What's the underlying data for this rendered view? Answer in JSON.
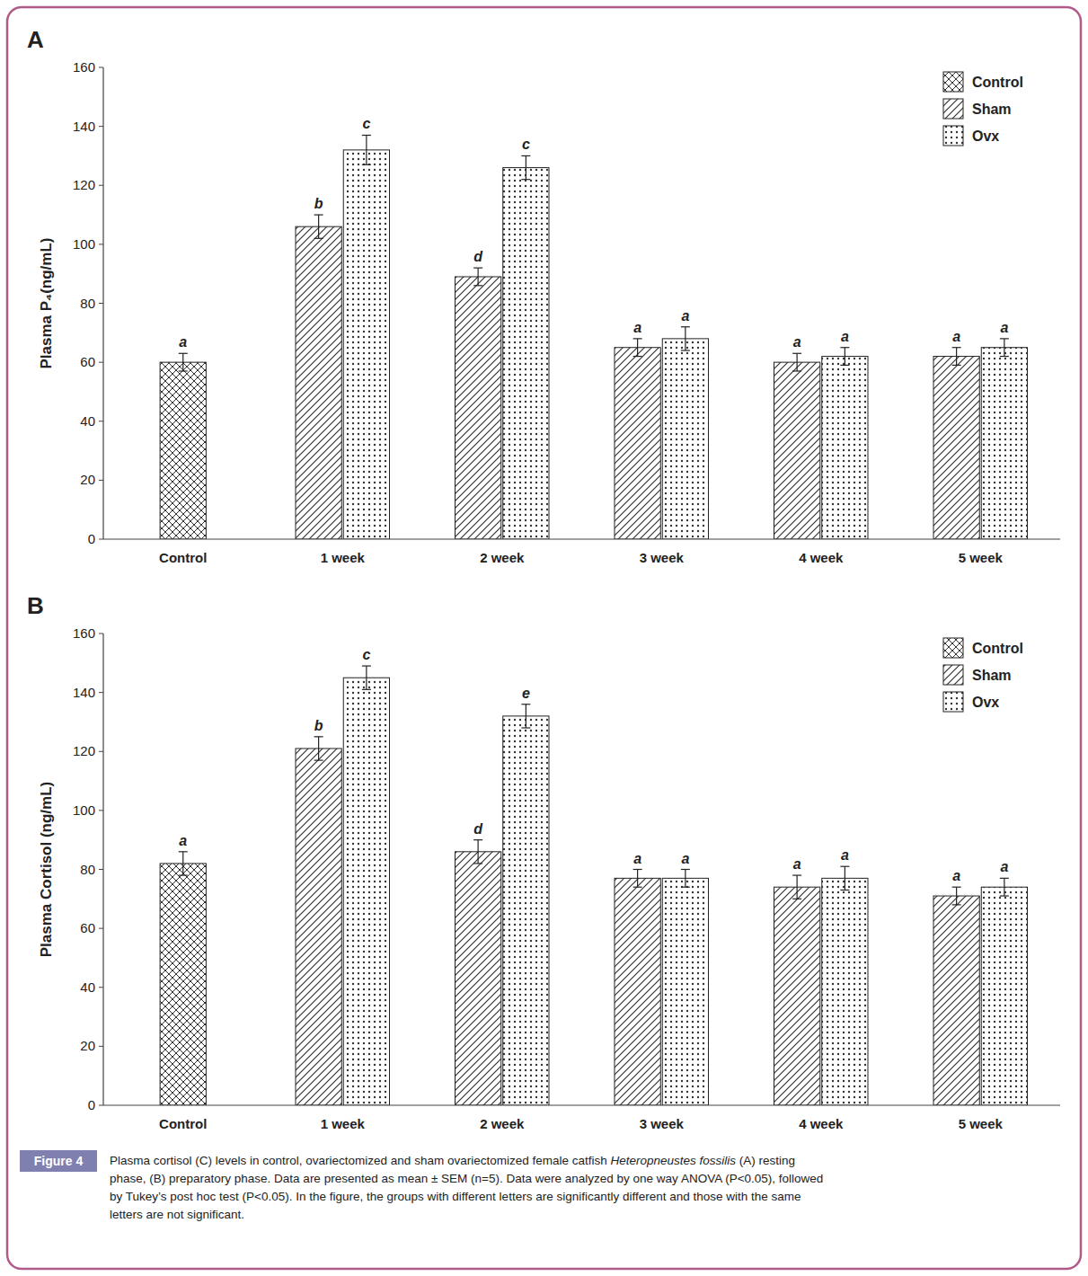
{
  "chart_data": [
    {
      "type": "bar",
      "title": "A",
      "ylabel": "Plasma P₄(ng/mL)",
      "categories": [
        "Control",
        "1 week",
        "2 week",
        "3 week",
        "4 week",
        "5 week"
      ],
      "series": [
        {
          "name": "Control",
          "values": [
            60,
            null,
            null,
            null,
            null,
            null
          ],
          "errors": [
            3,
            null,
            null,
            null,
            null,
            null
          ],
          "letters": [
            "a",
            null,
            null,
            null,
            null,
            null
          ]
        },
        {
          "name": "Sham",
          "values": [
            null,
            106,
            89,
            65,
            60,
            62
          ],
          "errors": [
            null,
            4,
            3,
            3,
            3,
            3
          ],
          "letters": [
            null,
            "b",
            "d",
            "a",
            "a",
            "a"
          ]
        },
        {
          "name": "Ovx",
          "values": [
            null,
            132,
            126,
            68,
            62,
            65
          ],
          "errors": [
            null,
            5,
            4,
            4,
            3,
            3
          ],
          "letters": [
            null,
            "c",
            "c",
            "a",
            "a",
            "a"
          ]
        }
      ],
      "ylim": [
        0,
        160
      ],
      "yticks": [
        0,
        20,
        40,
        60,
        80,
        100,
        120,
        140,
        160
      ],
      "grid": false,
      "legend": "upper right"
    },
    {
      "type": "bar",
      "title": "B",
      "ylabel": "Plasma Cortisol (ng/mL)",
      "categories": [
        "Control",
        "1 week",
        "2 week",
        "3 week",
        "4 week",
        "5 week"
      ],
      "series": [
        {
          "name": "Control",
          "values": [
            82,
            null,
            null,
            null,
            null,
            null
          ],
          "errors": [
            4,
            null,
            null,
            null,
            null,
            null
          ],
          "letters": [
            "a",
            null,
            null,
            null,
            null,
            null
          ]
        },
        {
          "name": "Sham",
          "values": [
            null,
            121,
            86,
            77,
            74,
            71
          ],
          "errors": [
            null,
            4,
            4,
            3,
            4,
            3
          ],
          "letters": [
            null,
            "b",
            "d",
            "a",
            "a",
            "a"
          ]
        },
        {
          "name": "Ovx",
          "values": [
            null,
            145,
            132,
            77,
            77,
            74
          ],
          "errors": [
            null,
            4,
            4,
            3,
            4,
            3
          ],
          "letters": [
            null,
            "c",
            "e",
            "a",
            "a",
            "a"
          ]
        }
      ],
      "ylim": [
        0,
        160
      ],
      "yticks": [
        0,
        20,
        40,
        60,
        80,
        100,
        120,
        140,
        160
      ],
      "grid": false,
      "legend": "upper right"
    }
  ],
  "figure_label": "Figure 4",
  "caption": "Plasma cortisol (C) levels in control, ovariectomized and sham ovariectomized female catfish Heteropneustes fossilis (A) resting\nphase, (B) preparatory phase. Data are presented as mean ± SEM (n=5). Data were analyzed by one way  ANOVA (P<0.05), followed\nby Tukey’s post hoc test (P<0.05). In the figure, the groups with different letters are significantly different and those with the same\nletters are not significant.",
  "caption_italic": "Heteropneustes fossilis"
}
